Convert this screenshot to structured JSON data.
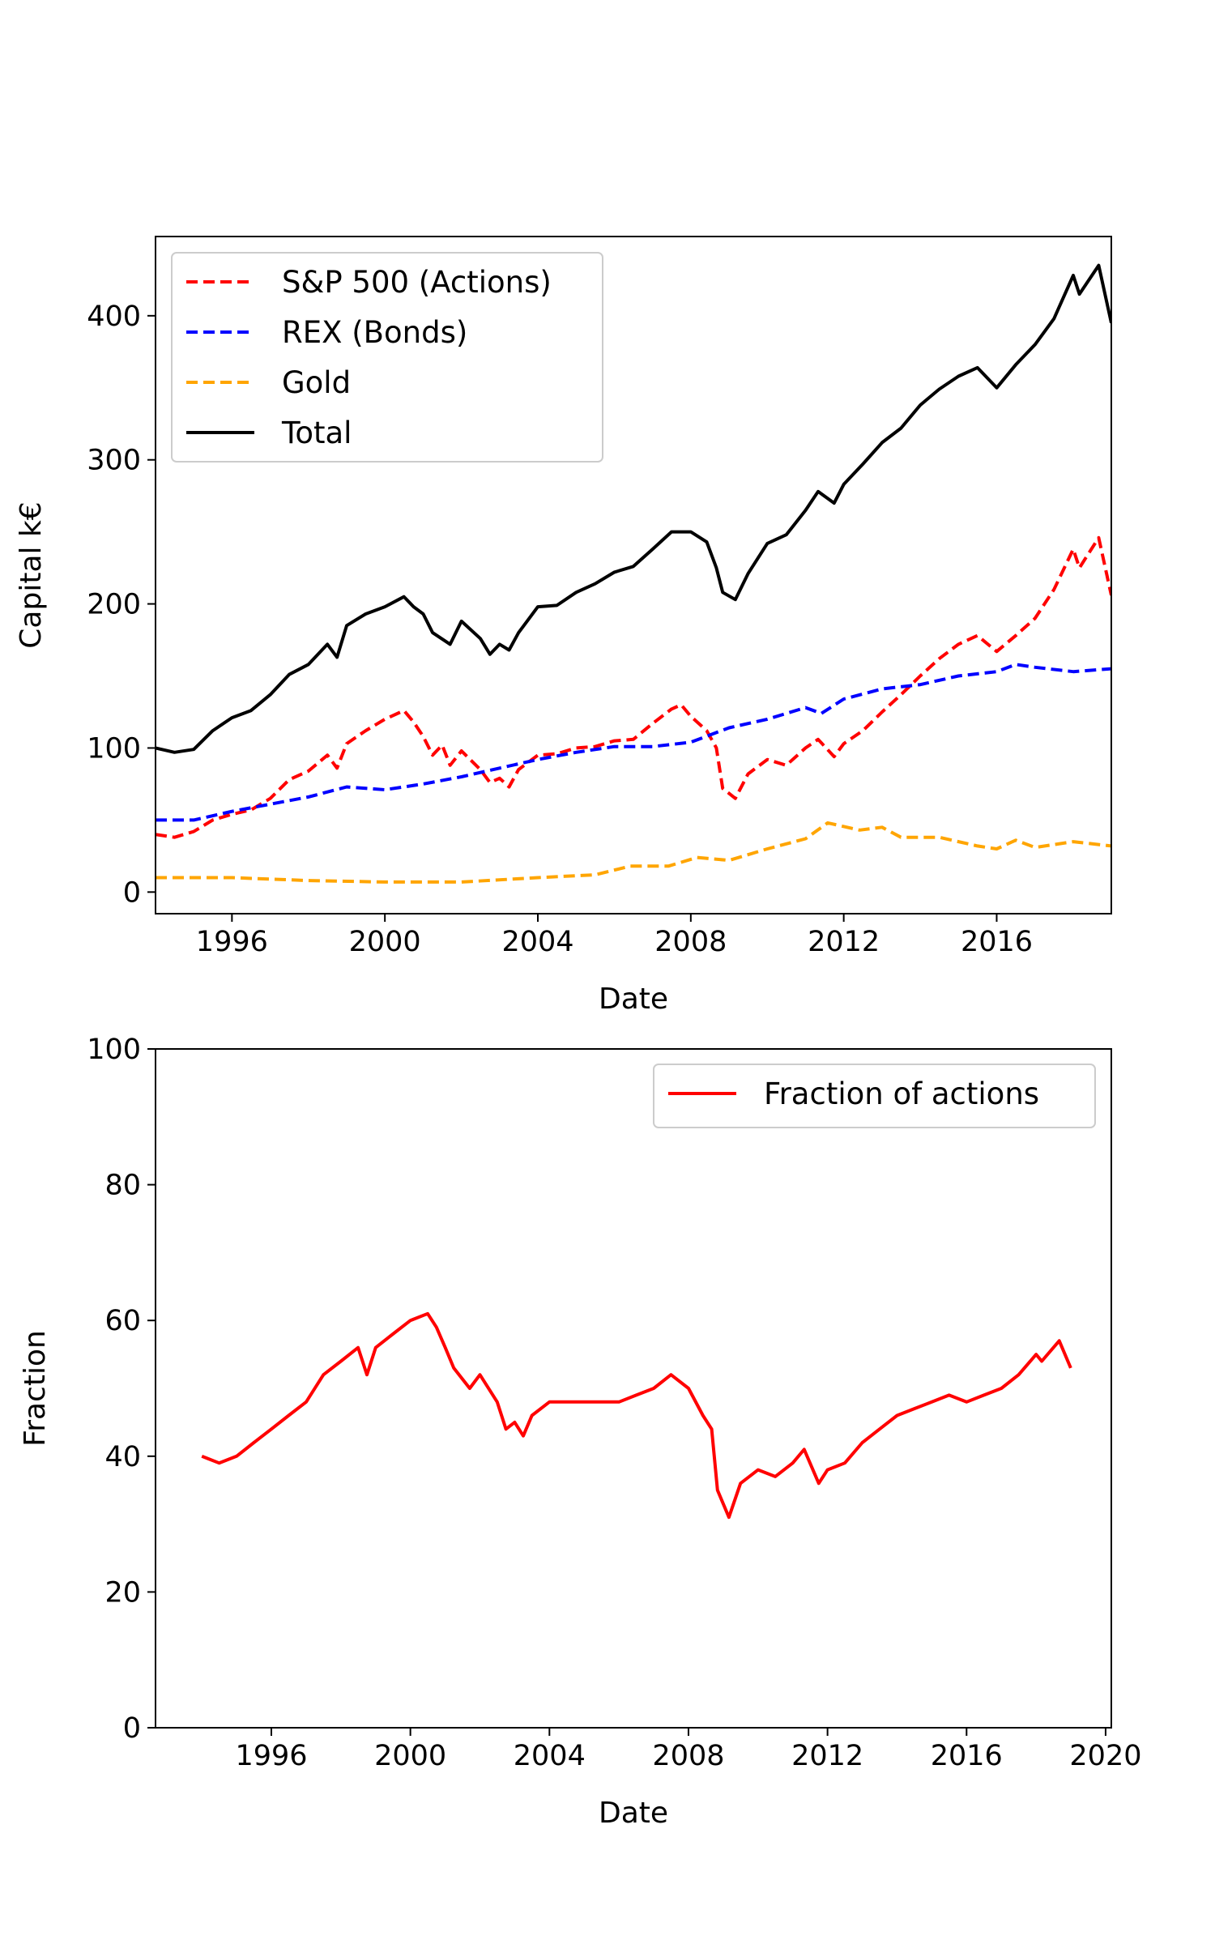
{
  "chart_data": [
    {
      "type": "line",
      "xlabel": "Date",
      "ylabel": "Capital k€",
      "xlim": [
        "1994-01-01",
        "2018-12-31"
      ],
      "ylim": [
        -15,
        455
      ],
      "xticks": [
        "1996",
        "2000",
        "2004",
        "2008",
        "2012",
        "2016"
      ],
      "yticks": [
        0,
        100,
        200,
        300,
        400
      ],
      "legend": "top-left",
      "grid": false,
      "series": [
        {
          "name": "S&P 500 (Actions)",
          "color": "#ff0000",
          "style": "dashed",
          "points": [
            [
              "1994-01-01",
              40
            ],
            [
              "1994-07-01",
              38
            ],
            [
              "1995-01-01",
              42
            ],
            [
              "1995-07-01",
              50
            ],
            [
              "1996-01-01",
              54
            ],
            [
              "1996-07-01",
              57
            ],
            [
              "1997-01-01",
              65
            ],
            [
              "1997-07-01",
              78
            ],
            [
              "1998-01-01",
              84
            ],
            [
              "1998-07-01",
              95
            ],
            [
              "1998-10-01",
              86
            ],
            [
              "1999-01-01",
              103
            ],
            [
              "1999-07-01",
              112
            ],
            [
              "2000-01-01",
              120
            ],
            [
              "2000-07-01",
              126
            ],
            [
              "2000-10-01",
              118
            ],
            [
              "2001-01-01",
              108
            ],
            [
              "2001-04-01",
              95
            ],
            [
              "2001-07-01",
              102
            ],
            [
              "2001-09-15",
              88
            ],
            [
              "2002-01-01",
              98
            ],
            [
              "2002-07-01",
              85
            ],
            [
              "2002-10-01",
              76
            ],
            [
              "2003-01-01",
              79
            ],
            [
              "2003-04-01",
              73
            ],
            [
              "2003-07-01",
              85
            ],
            [
              "2004-01-01",
              95
            ],
            [
              "2004-07-01",
              96
            ],
            [
              "2005-01-01",
              100
            ],
            [
              "2005-07-01",
              101
            ],
            [
              "2006-01-01",
              105
            ],
            [
              "2006-07-01",
              106
            ],
            [
              "2007-01-01",
              117
            ],
            [
              "2007-07-01",
              127
            ],
            [
              "2007-10-01",
              130
            ],
            [
              "2008-01-01",
              122
            ],
            [
              "2008-06-01",
              112
            ],
            [
              "2008-09-01",
              100
            ],
            [
              "2008-11-01",
              72
            ],
            [
              "2009-03-01",
              65
            ],
            [
              "2009-07-01",
              82
            ],
            [
              "2010-01-01",
              92
            ],
            [
              "2010-07-01",
              88
            ],
            [
              "2011-01-01",
              100
            ],
            [
              "2011-05-01",
              106
            ],
            [
              "2011-10-01",
              94
            ],
            [
              "2012-01-01",
              103
            ],
            [
              "2012-07-01",
              112
            ],
            [
              "2013-01-01",
              125
            ],
            [
              "2013-07-01",
              137
            ],
            [
              "2014-01-01",
              150
            ],
            [
              "2014-07-01",
              162
            ],
            [
              "2015-01-01",
              172
            ],
            [
              "2015-07-01",
              178
            ],
            [
              "2016-01-01",
              167
            ],
            [
              "2016-07-01",
              178
            ],
            [
              "2017-01-01",
              190
            ],
            [
              "2017-07-01",
              210
            ],
            [
              "2018-01-01",
              238
            ],
            [
              "2018-03-01",
              225
            ],
            [
              "2018-09-01",
              246
            ],
            [
              "2018-12-31",
              206
            ]
          ]
        },
        {
          "name": "REX (Bonds)",
          "color": "#0000ff",
          "style": "dashed",
          "points": [
            [
              "1994-01-01",
              50
            ],
            [
              "1995-01-01",
              50
            ],
            [
              "1996-01-01",
              56
            ],
            [
              "1997-01-01",
              61
            ],
            [
              "1998-01-01",
              66
            ],
            [
              "1999-01-01",
              73
            ],
            [
              "2000-01-01",
              71
            ],
            [
              "2001-01-01",
              75
            ],
            [
              "2002-01-01",
              80
            ],
            [
              "2003-01-01",
              86
            ],
            [
              "2004-01-01",
              92
            ],
            [
              "2005-01-01",
              97
            ],
            [
              "2006-01-01",
              101
            ],
            [
              "2007-01-01",
              101
            ],
            [
              "2008-01-01",
              104
            ],
            [
              "2009-01-01",
              114
            ],
            [
              "2010-01-01",
              120
            ],
            [
              "2011-01-01",
              128
            ],
            [
              "2011-06-01",
              124
            ],
            [
              "2012-01-01",
              134
            ],
            [
              "2013-01-01",
              141
            ],
            [
              "2014-01-01",
              144
            ],
            [
              "2015-01-01",
              150
            ],
            [
              "2016-01-01",
              153
            ],
            [
              "2016-07-01",
              158
            ],
            [
              "2017-01-01",
              156
            ],
            [
              "2018-01-01",
              153
            ],
            [
              "2018-12-31",
              155
            ]
          ]
        },
        {
          "name": "Gold",
          "color": "#ffa500",
          "style": "dashed",
          "points": [
            [
              "1994-01-01",
              10
            ],
            [
              "1996-01-01",
              10
            ],
            [
              "1998-01-01",
              8
            ],
            [
              "2000-01-01",
              7
            ],
            [
              "2002-01-01",
              7
            ],
            [
              "2004-01-01",
              10
            ],
            [
              "2005-07-01",
              12
            ],
            [
              "2006-06-01",
              18
            ],
            [
              "2007-06-01",
              18
            ],
            [
              "2008-03-01",
              24
            ],
            [
              "2009-01-01",
              22
            ],
            [
              "2010-01-01",
              30
            ],
            [
              "2011-01-01",
              37
            ],
            [
              "2011-08-01",
              48
            ],
            [
              "2012-06-01",
              43
            ],
            [
              "2013-01-01",
              45
            ],
            [
              "2013-07-01",
              38
            ],
            [
              "2014-07-01",
              38
            ],
            [
              "2015-07-01",
              32
            ],
            [
              "2016-01-01",
              30
            ],
            [
              "2016-07-01",
              36
            ],
            [
              "2017-01-01",
              31
            ],
            [
              "2018-01-01",
              35
            ],
            [
              "2018-12-31",
              32
            ]
          ]
        },
        {
          "name": "Total",
          "color": "#000000",
          "style": "solid",
          "points": [
            [
              "1994-01-01",
              100
            ],
            [
              "1994-07-01",
              97
            ],
            [
              "1995-01-01",
              99
            ],
            [
              "1995-07-01",
              112
            ],
            [
              "1996-01-01",
              121
            ],
            [
              "1996-07-01",
              126
            ],
            [
              "1997-01-01",
              137
            ],
            [
              "1997-07-01",
              151
            ],
            [
              "1998-01-01",
              158
            ],
            [
              "1998-07-01",
              172
            ],
            [
              "1998-10-01",
              163
            ],
            [
              "1999-01-01",
              185
            ],
            [
              "1999-07-01",
              193
            ],
            [
              "2000-01-01",
              198
            ],
            [
              "2000-07-01",
              205
            ],
            [
              "2000-10-01",
              198
            ],
            [
              "2001-01-01",
              193
            ],
            [
              "2001-04-01",
              180
            ],
            [
              "2001-09-15",
              172
            ],
            [
              "2002-01-01",
              188
            ],
            [
              "2002-07-01",
              176
            ],
            [
              "2002-10-01",
              165
            ],
            [
              "2003-01-01",
              172
            ],
            [
              "2003-04-01",
              168
            ],
            [
              "2003-07-01",
              180
            ],
            [
              "2004-01-01",
              198
            ],
            [
              "2004-07-01",
              199
            ],
            [
              "2005-01-01",
              208
            ],
            [
              "2005-07-01",
              214
            ],
            [
              "2006-01-01",
              222
            ],
            [
              "2006-07-01",
              226
            ],
            [
              "2007-01-01",
              238
            ],
            [
              "2007-07-01",
              250
            ],
            [
              "2008-01-01",
              250
            ],
            [
              "2008-06-01",
              243
            ],
            [
              "2008-09-01",
              225
            ],
            [
              "2008-11-01",
              208
            ],
            [
              "2009-03-01",
              203
            ],
            [
              "2009-07-01",
              221
            ],
            [
              "2010-01-01",
              242
            ],
            [
              "2010-07-01",
              248
            ],
            [
              "2011-01-01",
              265
            ],
            [
              "2011-05-01",
              278
            ],
            [
              "2011-10-01",
              270
            ],
            [
              "2012-01-01",
              283
            ],
            [
              "2012-07-01",
              297
            ],
            [
              "2013-01-01",
              312
            ],
            [
              "2013-07-01",
              322
            ],
            [
              "2014-01-01",
              338
            ],
            [
              "2014-07-01",
              349
            ],
            [
              "2015-01-01",
              358
            ],
            [
              "2015-07-01",
              364
            ],
            [
              "2016-01-01",
              350
            ],
            [
              "2016-07-01",
              366
            ],
            [
              "2017-01-01",
              380
            ],
            [
              "2017-07-01",
              398
            ],
            [
              "2018-01-01",
              428
            ],
            [
              "2018-03-01",
              415
            ],
            [
              "2018-09-01",
              435
            ],
            [
              "2018-12-31",
              395
            ]
          ]
        }
      ]
    },
    {
      "type": "line",
      "xlabel": "Date",
      "ylabel": "Fraction",
      "xlim": [
        "1992-09-01",
        "2020-03-01"
      ],
      "ylim": [
        0,
        100
      ],
      "xticks": [
        "1996",
        "2000",
        "2004",
        "2008",
        "2012",
        "2016",
        "2020"
      ],
      "yticks": [
        0,
        20,
        40,
        60,
        80,
        100
      ],
      "legend": "top-right",
      "grid": false,
      "series": [
        {
          "name": "Fraction of actions",
          "color": "#ff0000",
          "style": "solid",
          "points": [
            [
              "1994-01-01",
              40
            ],
            [
              "1994-07-01",
              39
            ],
            [
              "1995-01-01",
              40
            ],
            [
              "1995-07-01",
              42
            ],
            [
              "1996-01-01",
              44
            ],
            [
              "1996-07-01",
              46
            ],
            [
              "1997-01-01",
              48
            ],
            [
              "1997-07-01",
              52
            ],
            [
              "1998-01-01",
              54
            ],
            [
              "1998-07-01",
              56
            ],
            [
              "1998-10-01",
              52
            ],
            [
              "1999-01-01",
              56
            ],
            [
              "1999-07-01",
              58
            ],
            [
              "2000-01-01",
              60
            ],
            [
              "2000-07-01",
              61
            ],
            [
              "2000-10-01",
              59
            ],
            [
              "2001-01-01",
              56
            ],
            [
              "2001-04-01",
              53
            ],
            [
              "2001-09-15",
              50
            ],
            [
              "2002-01-01",
              52
            ],
            [
              "2002-07-01",
              48
            ],
            [
              "2002-10-01",
              44
            ],
            [
              "2003-01-01",
              45
            ],
            [
              "2003-04-01",
              43
            ],
            [
              "2003-07-01",
              46
            ],
            [
              "2004-01-01",
              48
            ],
            [
              "2004-07-01",
              48
            ],
            [
              "2005-01-01",
              48
            ],
            [
              "2005-07-01",
              48
            ],
            [
              "2006-01-01",
              48
            ],
            [
              "2006-07-01",
              49
            ],
            [
              "2007-01-01",
              50
            ],
            [
              "2007-07-01",
              52
            ],
            [
              "2008-01-01",
              50
            ],
            [
              "2008-06-01",
              46
            ],
            [
              "2008-09-01",
              44
            ],
            [
              "2008-11-01",
              35
            ],
            [
              "2009-03-01",
              31
            ],
            [
              "2009-07-01",
              36
            ],
            [
              "2010-01-01",
              38
            ],
            [
              "2010-07-01",
              37
            ],
            [
              "2011-01-01",
              39
            ],
            [
              "2011-05-01",
              41
            ],
            [
              "2011-10-01",
              36
            ],
            [
              "2012-01-01",
              38
            ],
            [
              "2012-07-01",
              39
            ],
            [
              "2013-01-01",
              42
            ],
            [
              "2013-07-01",
              44
            ],
            [
              "2014-01-01",
              46
            ],
            [
              "2014-07-01",
              47
            ],
            [
              "2015-01-01",
              48
            ],
            [
              "2015-07-01",
              49
            ],
            [
              "2016-01-01",
              48
            ],
            [
              "2016-07-01",
              49
            ],
            [
              "2017-01-01",
              50
            ],
            [
              "2017-07-01",
              52
            ],
            [
              "2018-01-01",
              55
            ],
            [
              "2018-03-01",
              54
            ],
            [
              "2018-09-01",
              57
            ],
            [
              "2018-12-31",
              53
            ]
          ]
        }
      ]
    }
  ]
}
